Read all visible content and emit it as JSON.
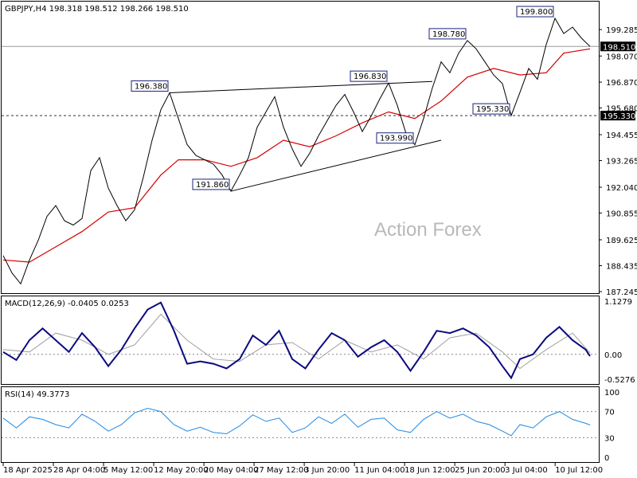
{
  "chart_data": [
    {
      "type": "line",
      "title": "GBPJPY,H4  198.318 198.512 198.266 198.510",
      "symbol": "GBPJPY",
      "timeframe": "H4",
      "ohlc": {
        "open": 198.318,
        "high": 198.512,
        "low": 198.266,
        "close": 198.51
      },
      "watermark": "Action Forex",
      "ylim": [
        187.245,
        200.35
      ],
      "y_ticks": [
        "199.285",
        "198.070",
        "196.870",
        "195.680",
        "194.455",
        "193.265",
        "192.040",
        "190.855",
        "189.625",
        "188.435",
        "187.245"
      ],
      "x_ticks": [
        "18 Apr 2025",
        "28 Apr 04:00",
        "5 May 12:00",
        "12 May 20:00",
        "20 May 04:00",
        "27 May 12:00",
        "3 Jun 20:00",
        "11 Jun 04:00",
        "18 Jun 12:00",
        "25 Jun 20:00",
        "3 Jul 04:00",
        "10 Jul 12:00"
      ],
      "price_series": [
        {
          "x": 0,
          "y": 188.9
        },
        {
          "x": 2,
          "y": 188.1
        },
        {
          "x": 4,
          "y": 187.6
        },
        {
          "x": 6,
          "y": 188.7
        },
        {
          "x": 8,
          "y": 189.6
        },
        {
          "x": 10,
          "y": 190.7
        },
        {
          "x": 12,
          "y": 191.2
        },
        {
          "x": 14,
          "y": 190.5
        },
        {
          "x": 16,
          "y": 190.3
        },
        {
          "x": 18,
          "y": 190.6
        },
        {
          "x": 20,
          "y": 192.8
        },
        {
          "x": 22,
          "y": 193.4
        },
        {
          "x": 24,
          "y": 192.0
        },
        {
          "x": 26,
          "y": 191.2
        },
        {
          "x": 28,
          "y": 190.5
        },
        {
          "x": 30,
          "y": 191.0
        },
        {
          "x": 32,
          "y": 192.5
        },
        {
          "x": 34,
          "y": 194.2
        },
        {
          "x": 36,
          "y": 195.6
        },
        {
          "x": 38,
          "y": 196.38
        },
        {
          "x": 40,
          "y": 195.2
        },
        {
          "x": 42,
          "y": 194.0
        },
        {
          "x": 44,
          "y": 193.5
        },
        {
          "x": 46,
          "y": 193.3
        },
        {
          "x": 48,
          "y": 193.1
        },
        {
          "x": 50,
          "y": 192.6
        },
        {
          "x": 52,
          "y": 191.86
        },
        {
          "x": 54,
          "y": 192.6
        },
        {
          "x": 56,
          "y": 193.4
        },
        {
          "x": 58,
          "y": 194.8
        },
        {
          "x": 60,
          "y": 195.5
        },
        {
          "x": 62,
          "y": 196.2
        },
        {
          "x": 64,
          "y": 194.8
        },
        {
          "x": 66,
          "y": 193.8
        },
        {
          "x": 68,
          "y": 193.0
        },
        {
          "x": 70,
          "y": 193.6
        },
        {
          "x": 72,
          "y": 194.4
        },
        {
          "x": 74,
          "y": 195.1
        },
        {
          "x": 76,
          "y": 195.8
        },
        {
          "x": 78,
          "y": 196.3
        },
        {
          "x": 80,
          "y": 195.5
        },
        {
          "x": 82,
          "y": 194.6
        },
        {
          "x": 84,
          "y": 195.3
        },
        {
          "x": 86,
          "y": 196.1
        },
        {
          "x": 88,
          "y": 196.83
        },
        {
          "x": 90,
          "y": 195.8
        },
        {
          "x": 92,
          "y": 194.5
        },
        {
          "x": 94,
          "y": 193.99
        },
        {
          "x": 96,
          "y": 195.2
        },
        {
          "x": 98,
          "y": 196.6
        },
        {
          "x": 100,
          "y": 197.8
        },
        {
          "x": 102,
          "y": 197.3
        },
        {
          "x": 104,
          "y": 198.2
        },
        {
          "x": 106,
          "y": 198.78
        },
        {
          "x": 108,
          "y": 198.4
        },
        {
          "x": 110,
          "y": 197.8
        },
        {
          "x": 112,
          "y": 197.2
        },
        {
          "x": 114,
          "y": 196.8
        },
        {
          "x": 116,
          "y": 195.33
        },
        {
          "x": 118,
          "y": 196.4
        },
        {
          "x": 120,
          "y": 197.5
        },
        {
          "x": 122,
          "y": 197.0
        },
        {
          "x": 124,
          "y": 198.6
        },
        {
          "x": 126,
          "y": 199.8
        },
        {
          "x": 128,
          "y": 199.1
        },
        {
          "x": 130,
          "y": 199.4
        },
        {
          "x": 132,
          "y": 198.9
        },
        {
          "x": 134,
          "y": 198.51
        }
      ],
      "ma_series": [
        {
          "x": 0,
          "y": 188.7
        },
        {
          "x": 6,
          "y": 188.6
        },
        {
          "x": 12,
          "y": 189.3
        },
        {
          "x": 18,
          "y": 190.0
        },
        {
          "x": 24,
          "y": 190.9
        },
        {
          "x": 30,
          "y": 191.1
        },
        {
          "x": 36,
          "y": 192.6
        },
        {
          "x": 40,
          "y": 193.3
        },
        {
          "x": 46,
          "y": 193.3
        },
        {
          "x": 52,
          "y": 193.0
        },
        {
          "x": 58,
          "y": 193.4
        },
        {
          "x": 64,
          "y": 194.2
        },
        {
          "x": 70,
          "y": 193.9
        },
        {
          "x": 76,
          "y": 194.4
        },
        {
          "x": 82,
          "y": 195.0
        },
        {
          "x": 88,
          "y": 195.5
        },
        {
          "x": 94,
          "y": 195.2
        },
        {
          "x": 100,
          "y": 196.0
        },
        {
          "x": 106,
          "y": 197.1
        },
        {
          "x": 112,
          "y": 197.5
        },
        {
          "x": 118,
          "y": 197.2
        },
        {
          "x": 124,
          "y": 197.3
        },
        {
          "x": 128,
          "y": 198.2
        },
        {
          "x": 134,
          "y": 198.4
        }
      ],
      "annotations": [
        {
          "label": "196.380",
          "x": 38,
          "y": 196.38
        },
        {
          "label": "196.830",
          "x": 88,
          "y": 196.83
        },
        {
          "label": "191.860",
          "x": 52,
          "y": 191.86
        },
        {
          "label": "193.990",
          "x": 94,
          "y": 193.99
        },
        {
          "label": "198.780",
          "x": 106,
          "y": 198.78
        },
        {
          "label": "195.330",
          "x": 116,
          "y": 195.33
        },
        {
          "label": "199.800",
          "x": 126,
          "y": 199.8
        }
      ],
      "trendlines": [
        {
          "from": {
            "x": 38,
            "y": 196.38
          },
          "to": {
            "x": 98,
            "y": 196.9
          }
        },
        {
          "from": {
            "x": 52,
            "y": 191.86
          },
          "to": {
            "x": 100,
            "y": 194.2
          }
        }
      ],
      "horizontal_levels": [
        {
          "label": "198.510",
          "y": 198.51,
          "style": "solid"
        },
        {
          "label": "195.330",
          "y": 195.33,
          "style": "dashed"
        }
      ],
      "colors": {
        "price": "#000000",
        "ma": "#d40000",
        "tag_border": "#1a237e"
      }
    },
    {
      "type": "line",
      "title": "MACD(12,26,9) -0.0405 0.0253",
      "ylim": [
        -0.5276,
        1.1279
      ],
      "y_ticks": [
        "1.1279",
        "0.00",
        "-0.5276"
      ],
      "macd_series": [
        {
          "x": 0,
          "y": 0.05
        },
        {
          "x": 3,
          "y": -0.12
        },
        {
          "x": 6,
          "y": 0.3
        },
        {
          "x": 9,
          "y": 0.55
        },
        {
          "x": 12,
          "y": 0.3
        },
        {
          "x": 15,
          "y": 0.05
        },
        {
          "x": 18,
          "y": 0.45
        },
        {
          "x": 21,
          "y": 0.15
        },
        {
          "x": 24,
          "y": -0.25
        },
        {
          "x": 27,
          "y": 0.1
        },
        {
          "x": 30,
          "y": 0.55
        },
        {
          "x": 33,
          "y": 0.95
        },
        {
          "x": 36,
          "y": 1.1
        },
        {
          "x": 39,
          "y": 0.5
        },
        {
          "x": 42,
          "y": -0.2
        },
        {
          "x": 45,
          "y": -0.15
        },
        {
          "x": 48,
          "y": -0.2
        },
        {
          "x": 51,
          "y": -0.3
        },
        {
          "x": 54,
          "y": -0.1
        },
        {
          "x": 57,
          "y": 0.4
        },
        {
          "x": 60,
          "y": 0.2
        },
        {
          "x": 63,
          "y": 0.5
        },
        {
          "x": 66,
          "y": -0.1
        },
        {
          "x": 69,
          "y": -0.3
        },
        {
          "x": 72,
          "y": 0.1
        },
        {
          "x": 75,
          "y": 0.45
        },
        {
          "x": 78,
          "y": 0.3
        },
        {
          "x": 81,
          "y": -0.05
        },
        {
          "x": 84,
          "y": 0.15
        },
        {
          "x": 87,
          "y": 0.3
        },
        {
          "x": 90,
          "y": 0.05
        },
        {
          "x": 93,
          "y": -0.35
        },
        {
          "x": 96,
          "y": 0.05
        },
        {
          "x": 99,
          "y": 0.5
        },
        {
          "x": 102,
          "y": 0.45
        },
        {
          "x": 105,
          "y": 0.55
        },
        {
          "x": 108,
          "y": 0.4
        },
        {
          "x": 111,
          "y": 0.15
        },
        {
          "x": 114,
          "y": -0.25
        },
        {
          "x": 116,
          "y": -0.5
        },
        {
          "x": 118,
          "y": -0.1
        },
        {
          "x": 121,
          "y": 0.0
        },
        {
          "x": 124,
          "y": 0.35
        },
        {
          "x": 127,
          "y": 0.58
        },
        {
          "x": 130,
          "y": 0.3
        },
        {
          "x": 133,
          "y": 0.1
        },
        {
          "x": 134,
          "y": -0.04
        }
      ],
      "signal_series": [
        {
          "x": 0,
          "y": 0.1
        },
        {
          "x": 6,
          "y": 0.05
        },
        {
          "x": 12,
          "y": 0.45
        },
        {
          "x": 18,
          "y": 0.3
        },
        {
          "x": 24,
          "y": 0.0
        },
        {
          "x": 30,
          "y": 0.2
        },
        {
          "x": 36,
          "y": 0.85
        },
        {
          "x": 42,
          "y": 0.3
        },
        {
          "x": 48,
          "y": -0.1
        },
        {
          "x": 54,
          "y": -0.15
        },
        {
          "x": 60,
          "y": 0.2
        },
        {
          "x": 66,
          "y": 0.25
        },
        {
          "x": 72,
          "y": -0.1
        },
        {
          "x": 78,
          "y": 0.3
        },
        {
          "x": 84,
          "y": 0.05
        },
        {
          "x": 90,
          "y": 0.2
        },
        {
          "x": 96,
          "y": -0.1
        },
        {
          "x": 102,
          "y": 0.35
        },
        {
          "x": 108,
          "y": 0.45
        },
        {
          "x": 114,
          "y": 0.05
        },
        {
          "x": 118,
          "y": -0.3
        },
        {
          "x": 124,
          "y": 0.1
        },
        {
          "x": 130,
          "y": 0.45
        },
        {
          "x": 134,
          "y": 0.03
        }
      ],
      "colors": {
        "macd": "#0b0b80",
        "signal": "#a0a0a0"
      }
    },
    {
      "type": "line",
      "title": "RSI(14) 49.3773",
      "ylim": [
        0,
        100
      ],
      "y_ticks": [
        "100",
        "70",
        "30",
        "0"
      ],
      "rsi_series": [
        {
          "x": 0,
          "y": 60
        },
        {
          "x": 3,
          "y": 45
        },
        {
          "x": 6,
          "y": 62
        },
        {
          "x": 9,
          "y": 58
        },
        {
          "x": 12,
          "y": 50
        },
        {
          "x": 15,
          "y": 45
        },
        {
          "x": 18,
          "y": 66
        },
        {
          "x": 21,
          "y": 55
        },
        {
          "x": 24,
          "y": 40
        },
        {
          "x": 27,
          "y": 50
        },
        {
          "x": 30,
          "y": 68
        },
        {
          "x": 33,
          "y": 75
        },
        {
          "x": 36,
          "y": 70
        },
        {
          "x": 39,
          "y": 50
        },
        {
          "x": 42,
          "y": 40
        },
        {
          "x": 45,
          "y": 46
        },
        {
          "x": 48,
          "y": 38
        },
        {
          "x": 51,
          "y": 36
        },
        {
          "x": 54,
          "y": 48
        },
        {
          "x": 57,
          "y": 65
        },
        {
          "x": 60,
          "y": 55
        },
        {
          "x": 63,
          "y": 60
        },
        {
          "x": 66,
          "y": 38
        },
        {
          "x": 69,
          "y": 45
        },
        {
          "x": 72,
          "y": 62
        },
        {
          "x": 75,
          "y": 52
        },
        {
          "x": 78,
          "y": 66
        },
        {
          "x": 81,
          "y": 46
        },
        {
          "x": 84,
          "y": 58
        },
        {
          "x": 87,
          "y": 60
        },
        {
          "x": 90,
          "y": 42
        },
        {
          "x": 93,
          "y": 38
        },
        {
          "x": 96,
          "y": 58
        },
        {
          "x": 99,
          "y": 70
        },
        {
          "x": 102,
          "y": 60
        },
        {
          "x": 105,
          "y": 66
        },
        {
          "x": 108,
          "y": 55
        },
        {
          "x": 111,
          "y": 50
        },
        {
          "x": 114,
          "y": 40
        },
        {
          "x": 116,
          "y": 33
        },
        {
          "x": 118,
          "y": 50
        },
        {
          "x": 121,
          "y": 45
        },
        {
          "x": 124,
          "y": 62
        },
        {
          "x": 127,
          "y": 70
        },
        {
          "x": 130,
          "y": 58
        },
        {
          "x": 133,
          "y": 52
        },
        {
          "x": 134,
          "y": 49.38
        }
      ],
      "levels": [
        70,
        30
      ],
      "colors": {
        "rsi": "#1e88e5"
      }
    }
  ]
}
